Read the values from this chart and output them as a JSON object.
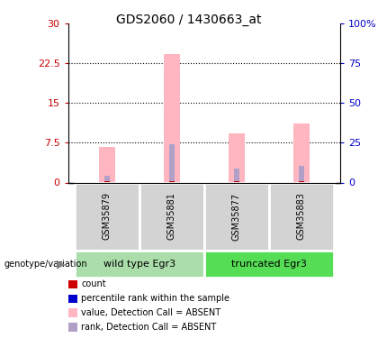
{
  "title": "GDS2060 / 1430663_at",
  "samples": [
    "GSM35879",
    "GSM35881",
    "GSM35877",
    "GSM35883"
  ],
  "pink_bars": [
    6.8,
    24.2,
    9.2,
    11.2
  ],
  "blue_bars": [
    1.3,
    7.3,
    2.7,
    3.1
  ],
  "red_bars": [
    0.3,
    0.3,
    0.3,
    0.3
  ],
  "ylim": [
    0,
    30
  ],
  "yticks": [
    0,
    7.5,
    15,
    22.5,
    30
  ],
  "ytick_labels": [
    "0",
    "7.5",
    "15",
    "22.5",
    "30"
  ],
  "right_ytick_labels": [
    "0",
    "25",
    "50",
    "75",
    "100%"
  ],
  "left_color": "#cc0000",
  "right_color": "#0000cc",
  "pink_color": "#ffb6c1",
  "blue_color": "#b0a0c8",
  "red_color": "#cc0000",
  "cell_bg": "#d3d3d3",
  "group1_color": "#aaddaa",
  "group2_color": "#55dd55",
  "legend_items": [
    {
      "color": "#cc0000",
      "label": "count"
    },
    {
      "color": "#0000cc",
      "label": "percentile rank within the sample"
    },
    {
      "color": "#ffb6c1",
      "label": "value, Detection Call = ABSENT"
    },
    {
      "color": "#b0a0c8",
      "label": "rank, Detection Call = ABSENT"
    }
  ]
}
